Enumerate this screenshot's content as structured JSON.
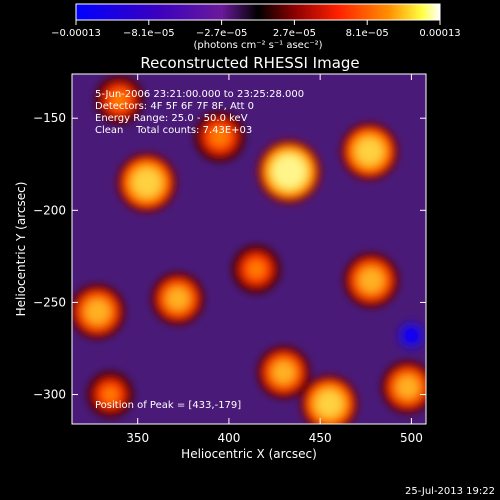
{
  "chart_data": {
    "type": "heatmap",
    "title": "Reconstructed RHESSI Image",
    "xlabel": "Heliocentric X (arcsec)",
    "ylabel": "Heliocentric Y (arcsec)",
    "xlim": [
      314,
      508
    ],
    "ylim": [
      -316,
      -126
    ],
    "x_ticks": [
      350,
      400,
      450,
      500
    ],
    "y_ticks": [
      -300,
      -250,
      -200,
      -150
    ],
    "x_tick_labels": [
      "350",
      "400",
      "450",
      "500"
    ],
    "y_tick_labels": [
      "−300",
      "−250",
      "−200",
      "−150"
    ],
    "annotations": {
      "time_range": "5-Jun-2006 23:21:00.000 to 23:25:28.000",
      "detectors": "Detectors: 4F 5F 6F 7F 8F, Att 0",
      "energy_range": "Energy Range: 25.0 - 50.0 keV",
      "clean_counts": "Clean    Total counts: 7.43E+03",
      "peak_position": "Position of Peak = [433,-179]"
    },
    "colorbar": {
      "range": [
        -0.00013,
        0.00013
      ],
      "tick_labels": [
        "−0.00013",
        "−8.1e−05",
        "−2.7e−05",
        "2.7e−05",
        "8.1e−05",
        "0.00013"
      ],
      "units": "(photons cm⁻² s⁻¹ asec⁻²)",
      "colormap": [
        "#0000ff",
        "#3a00c0",
        "#6a1a9a",
        "#000000",
        "#8b0000",
        "#ff2000",
        "#ff9000",
        "#ffff40",
        "#ffffff"
      ]
    },
    "peaks": [
      {
        "x": 433,
        "y": -179,
        "value": 0.00013
      },
      {
        "x": 355,
        "y": -185,
        "value": 0.00011
      },
      {
        "x": 477,
        "y": -168,
        "value": 0.0001
      },
      {
        "x": 478,
        "y": -238,
        "value": 9e-05
      },
      {
        "x": 455,
        "y": -305,
        "value": 0.0001
      },
      {
        "x": 328,
        "y": -255,
        "value": 9e-05
      },
      {
        "x": 430,
        "y": -288,
        "value": 8e-05
      },
      {
        "x": 372,
        "y": -248,
        "value": 8e-05
      },
      {
        "x": 498,
        "y": -296,
        "value": 8e-05
      },
      {
        "x": 395,
        "y": -160,
        "value": 7e-05
      },
      {
        "x": 340,
        "y": -140,
        "value": 6e-05
      },
      {
        "x": 415,
        "y": -232,
        "value": 6e-05
      },
      {
        "x": 335,
        "y": -300,
        "value": 5e-05
      }
    ],
    "minimum": {
      "x": 500,
      "y": -268,
      "value": -0.00013
    },
    "grid": false
  },
  "footer": {
    "timestamp": "25-Jul-2013 19:22"
  },
  "colors": {
    "background": "#000000",
    "text": "#ffffff"
  }
}
